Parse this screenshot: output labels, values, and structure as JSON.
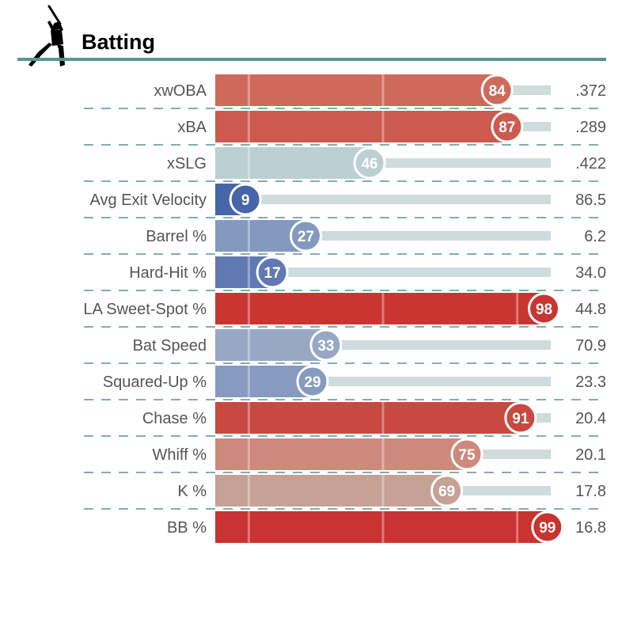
{
  "header": {
    "title": "Batting",
    "icon": "batter-silhouette-icon"
  },
  "colors": {
    "header_rule": "#5a9494",
    "divider": "#5a9494",
    "track": "#cfdcdc",
    "label_text": "#555555",
    "bubble_text": "#ffffff"
  },
  "chart_data": {
    "type": "bar",
    "title": "Batting",
    "xlim": [
      0,
      100
    ],
    "reference_lines": [
      10,
      50,
      90
    ],
    "categories": [
      "xwOBA",
      "xBA",
      "xSLG",
      "Avg Exit Velocity",
      "Barrel %",
      "Hard-Hit %",
      "LA Sweet-Spot %",
      "Bat Speed",
      "Squared-Up %",
      "Chase %",
      "Whiff %",
      "K %",
      "BB %"
    ],
    "series": [
      {
        "values": [
          84,
          87,
          46,
          9,
          27,
          17,
          98,
          33,
          29,
          91,
          75,
          69,
          99
        ],
        "colors": [
          "#cf6a5a",
          "#cc5a4e",
          "#bccfd2",
          "#4766aa",
          "#8399bf",
          "#6179b2",
          "#c93632",
          "#97a8c4",
          "#879ac0",
          "#c94840",
          "#cd8a7c",
          "#c5a196",
          "#c93331"
        ]
      }
    ],
    "stat_values": [
      ".372",
      ".289",
      ".422",
      "86.5",
      "6.2",
      "34.0",
      "44.8",
      "70.9",
      "23.3",
      "20.4",
      "20.1",
      "17.8",
      "16.8"
    ]
  }
}
